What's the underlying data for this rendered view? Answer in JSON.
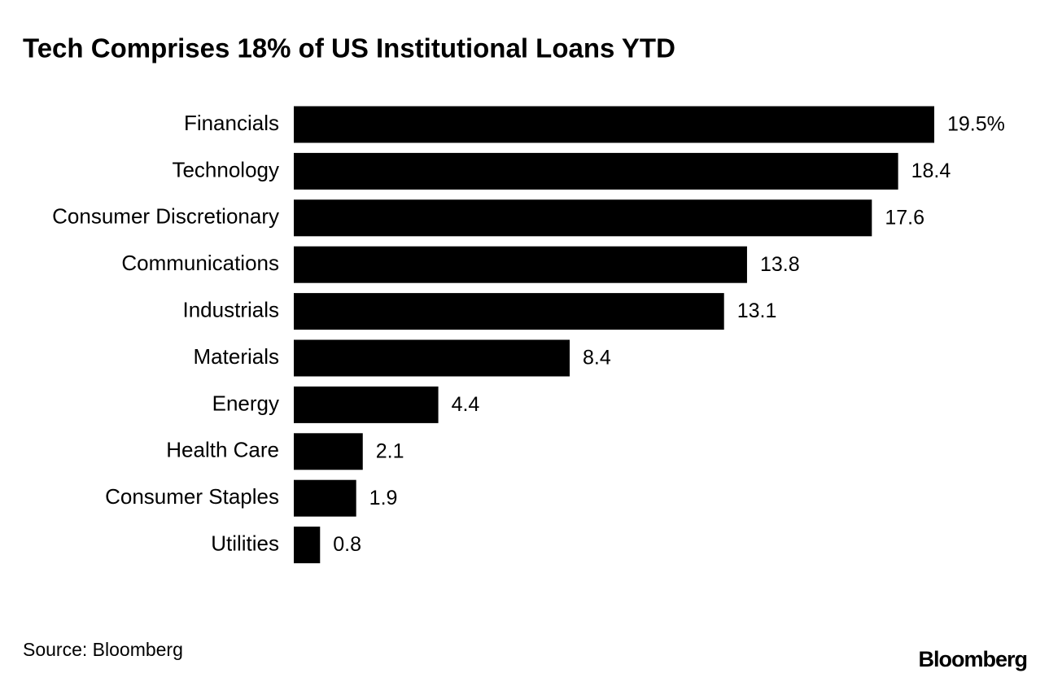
{
  "chart_data": {
    "type": "bar",
    "orientation": "horizontal",
    "title": "Tech Comprises 18% of US Institutional Loans YTD",
    "categories": [
      "Financials",
      "Technology",
      "Consumer Discretionary",
      "Communications",
      "Industrials",
      "Materials",
      "Energy",
      "Health Care",
      "Consumer Staples",
      "Utilities"
    ],
    "values": [
      19.5,
      18.4,
      17.6,
      13.8,
      13.1,
      8.4,
      4.4,
      2.1,
      1.9,
      0.8
    ],
    "value_labels": [
      "19.5%",
      "18.4",
      "17.6",
      "13.8",
      "13.1",
      "8.4",
      "4.4",
      "2.1",
      "1.9",
      "0.8"
    ],
    "color": "#000000",
    "source": "Source: Bloomberg",
    "logo": "Bloomberg"
  }
}
